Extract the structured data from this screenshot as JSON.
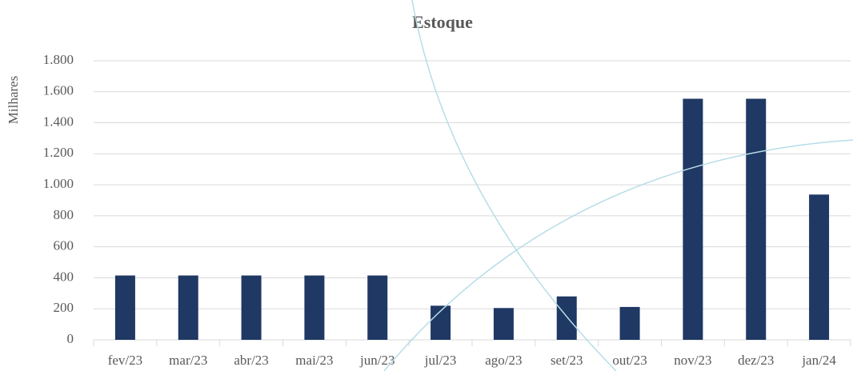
{
  "chart_data": {
    "type": "bar",
    "title": "Estoque",
    "y_label": "Milhares",
    "categories": [
      "fev/23",
      "mar/23",
      "abr/23",
      "mai/23",
      "jun/23",
      "jul/23",
      "ago/23",
      "set/23",
      "out/23",
      "nov/23",
      "dez/23",
      "jan/24"
    ],
    "values": [
      415,
      415,
      415,
      415,
      415,
      220,
      205,
      280,
      212,
      1555,
      1555,
      937
    ],
    "color": "#1f3864",
    "ylim": [
      0,
      1800
    ],
    "yticks": [
      0,
      200,
      400,
      600,
      800,
      {
        "value": 1000,
        "label": "1.000"
      },
      {
        "value": 1200,
        "label": "1.200"
      },
      {
        "value": 1400,
        "label": "1.400"
      },
      {
        "value": 1600,
        "label": "1.600"
      },
      {
        "value": 1800,
        "label": "1.800"
      }
    ],
    "grid": true
  }
}
